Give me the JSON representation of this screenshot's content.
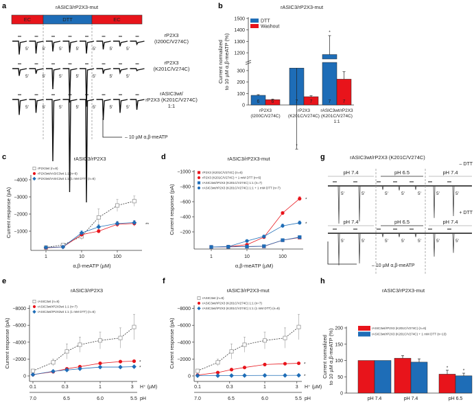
{
  "colors": {
    "red": "#e8141b",
    "blue": "#1e6db7",
    "gray": "#9a9a9a",
    "black": "#111111"
  },
  "panel_a": {
    "label": "a",
    "title": "rASIC3/rP2X3-mut",
    "conditions": [
      "EC",
      "DTT",
      "EC"
    ],
    "interval": "5′",
    "agonist": "– 10 µM α,β-meATP",
    "rows": [
      {
        "line1": "rP2X3",
        "line2": "(I200C/V274C)",
        "line3": "",
        "relative_peaks": [
          0.13,
          0.12,
          0.1,
          0.11,
          0.12,
          0.08,
          0.05,
          0.03
        ]
      },
      {
        "line1": "rP2X3",
        "line2": "(K201C/V274C)",
        "line3": "",
        "relative_peaks": [
          0.07,
          0.05,
          0.2,
          0.33,
          0.37,
          0.05,
          0.04,
          0.02
        ]
      },
      {
        "line1": "rASIC3wt/",
        "line2": "rP2X3 (K201C/V274C)",
        "line3": "1:1",
        "relative_peaks": [
          0.15,
          0.13,
          0.6,
          0.9,
          1.0,
          0.2,
          0.13,
          0.1
        ]
      }
    ]
  },
  "panel_g": {
    "label": "g",
    "title": "rASIC3wt/rP2X3 (K201C/V274C)",
    "ph_segments": [
      "pH 7.4",
      "pH 6.5",
      "pH 7.4"
    ],
    "conditions": [
      "– DTT",
      "+ DTT"
    ],
    "interval": "5′",
    "agonist": "– 10 µM α,β-meATP",
    "rows": [
      {
        "relative_peaks": [
          1.0,
          0.94,
          0.1,
          0.12,
          0.1,
          0.85,
          0.8
        ]
      },
      {
        "relative_peaks": [
          0.85,
          0.8,
          0.1,
          0.1,
          0.1,
          0.62,
          0.52
        ]
      }
    ]
  },
  "chart_data": [
    {
      "panel": "b",
      "type": "bar",
      "title": "rASIC3/rP2X3-mut",
      "ylabel": [
        "Current normalized",
        "to 10 µM α,β-meATP (%)"
      ],
      "categories": [
        [
          "rP2X3",
          "(I200C/V274C)",
          ""
        ],
        [
          "rP2X3",
          "(K201C/V274C)",
          ""
        ],
        [
          "rASIC3wt/rP2X3",
          "(K201C/V274C)",
          "1:1"
        ]
      ],
      "ytick_labels": [
        "0",
        "100",
        "200",
        "300",
        "1200",
        "1300",
        "1400",
        "1500"
      ],
      "yticks": [
        0,
        100,
        200,
        300,
        1200,
        1300,
        1400,
        1500
      ],
      "axis_break": [
        350,
        1150
      ],
      "series": [
        {
          "name": "DTT",
          "color": "#1e6db7",
          "values": [
            84,
            322,
            1185
          ],
          "errors": [
            6,
            38,
            165
          ],
          "n": [
            "6",
            "7",
            "7"
          ],
          "significance": [
            "",
            "*",
            "*"
          ]
        },
        {
          "name": "Washout",
          "color": "#e8141b",
          "values": [
            46,
            72,
            225
          ],
          "errors": [
            5,
            8,
            65
          ],
          "n": [
            "6",
            "7",
            "7"
          ],
          "significance": [
            "",
            "",
            ""
          ]
        }
      ]
    },
    {
      "panel": "c",
      "type": "line",
      "title": "rASIC3/rP2X3",
      "xlabel": "α,β-meATP (µM)",
      "ylabel": "Current response (pA)",
      "xscale": "log",
      "x": [
        1,
        3,
        10,
        30,
        100,
        300
      ],
      "xticks": [
        1,
        10,
        100
      ],
      "xtick_labels": [
        "1",
        "10",
        "100"
      ],
      "yticks": [
        -1000,
        -2000,
        -3000,
        -4000
      ],
      "ytick_labels": [
        "−1000",
        "−2000",
        "−3000",
        "−4000"
      ],
      "ylim": [
        0,
        -4500
      ],
      "significance": "**",
      "series": [
        {
          "name": "rP2X3wt (n=8)",
          "color": "#9a9a9a",
          "marker": "square-open",
          "dashed": true,
          "values": [
            -50,
            -200,
            -700,
            -1800,
            -2500,
            -2750
          ],
          "errors": [
            30,
            80,
            200,
            500,
            350,
            300
          ]
        },
        {
          "name": "rP2X3wt/rASIC3wt 1:1 (n=6)",
          "color": "#e8141b",
          "marker": "circle",
          "dashed": false,
          "values": [
            -30,
            -80,
            -800,
            -1000,
            -1400,
            -1450
          ],
          "errors": [
            20,
            40,
            120,
            100,
            150,
            150
          ]
        },
        {
          "name": "rP2X3wt/rASIC3wt 1:1 (1 mM DTT) (n=6)",
          "color": "#1e6db7",
          "marker": "diamond",
          "dashed": false,
          "values": [
            -50,
            -80,
            -900,
            -1250,
            -1450,
            -1500
          ],
          "errors": [
            30,
            40,
            120,
            120,
            120,
            120
          ]
        }
      ]
    },
    {
      "panel": "d",
      "type": "line",
      "title": "rASIC3/rP2X3-mut",
      "xlabel": "α,β-meATP (µM)",
      "ylabel": "Current response (pA)",
      "xscale": "log",
      "x": [
        1,
        3,
        10,
        30,
        100,
        300
      ],
      "xticks": [
        1,
        10,
        100
      ],
      "xtick_labels": [
        "1",
        "10",
        "100"
      ],
      "yticks": [
        -200,
        -400,
        -600,
        -800,
        -1000
      ],
      "ytick_labels": [
        "−200",
        "−400",
        "−600",
        "−800",
        "−1000"
      ],
      "ylim": [
        0,
        -1000
      ],
      "significance": "*",
      "series": [
        {
          "name": "rP2X3 (K201C/V274C) (n=6)",
          "color": "#e8141b",
          "marker": "square",
          "dashed": false,
          "values": [
            0,
            -2,
            -5,
            -8,
            -90,
            -125
          ],
          "errors": [
            3,
            3,
            5,
            5,
            10,
            12
          ],
          "sig": ""
        },
        {
          "name": "rP2X3 (K201C/V274C) + 1 mM DTT (n=6)",
          "color": "#e8141b",
          "marker": "circle",
          "dashed": false,
          "values": [
            0,
            -3,
            -30,
            -130,
            -450,
            -640
          ],
          "errors": [
            3,
            5,
            10,
            15,
            20,
            25
          ],
          "sig": "*"
        },
        {
          "name": "rASIC3wt/rP2X3 (K201C/V274C) 1:1 (n=7)",
          "color": "#1e6db7",
          "marker": "square",
          "dashed": false,
          "values": [
            0,
            -2,
            -5,
            -10,
            -90,
            -130
          ],
          "errors": [
            3,
            3,
            5,
            5,
            10,
            12
          ],
          "sig": ""
        },
        {
          "name": "rASIC3wt/rP2X3 (K201C/V274C) 1:1 + 1 mM DTT (n=7)",
          "color": "#1e6db7",
          "marker": "circle",
          "dashed": false,
          "values": [
            0,
            -5,
            -80,
            -140,
            -280,
            -320
          ],
          "errors": [
            3,
            5,
            12,
            15,
            25,
            25
          ],
          "sig": "*"
        }
      ]
    },
    {
      "panel": "e",
      "type": "line",
      "title": "rASIC3/rP2X3",
      "xlabel": "H⁺ (µM)",
      "x2label": "pH",
      "ylabel": "Current response (pA)",
      "xscale": "log",
      "x": [
        0.1,
        0.2,
        0.32,
        0.5,
        1,
        2,
        3.2
      ],
      "xticks": [
        0.1,
        0.3,
        1,
        3
      ],
      "xtick_labels": [
        "0.1",
        "0.3",
        "1",
        "3"
      ],
      "ph_ticks": [
        7.0,
        6.5,
        6.0,
        5.5
      ],
      "ph_tick_labels": [
        "7.0",
        "6.5",
        "6.0",
        "5.5"
      ],
      "yticks": [
        0,
        -2000,
        -4000,
        -6000,
        -8000
      ],
      "ytick_labels": [
        "0",
        "−2000",
        "−4000",
        "−6000",
        "−8000"
      ],
      "ylim": [
        0,
        -8500
      ],
      "series": [
        {
          "name": "rASIC3wt (n=8)",
          "color": "#9a9a9a",
          "marker": "square-open",
          "dashed": true,
          "values": [
            -600,
            -1600,
            -2900,
            -3700,
            -4200,
            -4500,
            -5800
          ],
          "errors": [
            150,
            400,
            900,
            900,
            1000,
            1200,
            1500
          ],
          "sig": ""
        },
        {
          "name": "rASIC3wt/rP2X3wt 1:1 (n=7)",
          "color": "#e8141b",
          "marker": "circle",
          "dashed": false,
          "values": [
            -150,
            -500,
            -850,
            -1100,
            -1500,
            -1700,
            -1750
          ],
          "errors": [
            50,
            80,
            100,
            120,
            120,
            120,
            120
          ],
          "sig": "*"
        },
        {
          "name": "rASIC3wt/rP2X3wt 1:1 (1 mM DTT) (n=6)",
          "color": "#1e6db7",
          "marker": "diamond",
          "dashed": false,
          "values": [
            -150,
            -550,
            -700,
            -850,
            -1050,
            -1050,
            -1100
          ],
          "errors": [
            50,
            80,
            100,
            100,
            100,
            100,
            100
          ],
          "sig": "*"
        }
      ]
    },
    {
      "panel": "f",
      "type": "line",
      "title": "rASIC3/rP2X3-mut",
      "xlabel": "H⁺ (µM)",
      "x2label": "pH",
      "ylabel": "Current response (pA)",
      "xscale": "log",
      "x": [
        0.1,
        0.2,
        0.32,
        0.5,
        1,
        2,
        3.2
      ],
      "xticks": [
        0.1,
        0.3,
        1,
        3
      ],
      "xtick_labels": [
        "0.1",
        "0.3",
        "1",
        "3"
      ],
      "ph_ticks": [
        7.0,
        6.5,
        6.0,
        5.5
      ],
      "ph_tick_labels": [
        "7.0",
        "6.5",
        "6.0",
        "5.5"
      ],
      "yticks": [
        0,
        -2000,
        -4000,
        -6000,
        -8000
      ],
      "ytick_labels": [
        "0",
        "−2000",
        "−4000",
        "−6000",
        "−8000"
      ],
      "ylim": [
        0,
        -8500
      ],
      "series": [
        {
          "name": "rASIC3wt (n=8)",
          "color": "#9a9a9a",
          "marker": "square-open",
          "dashed": true,
          "values": [
            -600,
            -1600,
            -2900,
            -3700,
            -4200,
            -4500,
            -5800
          ],
          "errors": [
            150,
            400,
            900,
            900,
            1000,
            1200,
            1500
          ],
          "sig": ""
        },
        {
          "name": "rASIC3wt/rP2X3 (K201C/V274C) 1:1 (n=7)",
          "color": "#e8141b",
          "marker": "circle",
          "dashed": false,
          "values": [
            -100,
            -400,
            -750,
            -1000,
            -1350,
            -1450,
            -1500
          ],
          "errors": [
            40,
            60,
            80,
            100,
            100,
            100,
            100
          ],
          "sig": "*"
        },
        {
          "name": "rASIC3wt/rP2X3 (K201C/V274C) 1:1 (1 mM DTT) (n=8)",
          "color": "#1e6db7",
          "marker": "diamond",
          "dashed": false,
          "values": [
            -30,
            -30,
            -40,
            -50,
            -60,
            -60,
            -70
          ],
          "errors": [
            10,
            10,
            10,
            10,
            10,
            10,
            10
          ],
          "sig": "*"
        }
      ]
    },
    {
      "panel": "h",
      "type": "bar",
      "title": "rASIC3/rP2X3-mut",
      "ylabel": [
        "Current normalized",
        "to 10 µM α,β-meATP (%)"
      ],
      "categories": [
        "pH 7.4",
        "pH 7.4",
        "pH 6.5"
      ],
      "yticks": [
        0,
        50,
        100,
        150,
        200
      ],
      "ytick_labels": [
        "0",
        "50",
        "100",
        "150",
        "200"
      ],
      "series": [
        {
          "name": "rASIC3wt/rP2X3 (K201C/V274C) (n=6)",
          "color": "#e8141b",
          "values": [
            100,
            107,
            58
          ],
          "errors": [
            0,
            8,
            12
          ],
          "significance": [
            "",
            "",
            "*"
          ]
        },
        {
          "name": "rASIC3wt/rP2X3 (K201C/V274C) + 1 mM DTT (n=13)",
          "color": "#1e6db7",
          "values": [
            100,
            95,
            53
          ],
          "errors": [
            0,
            10,
            8
          ],
          "significance": [
            "",
            "",
            "*"
          ]
        }
      ]
    }
  ]
}
